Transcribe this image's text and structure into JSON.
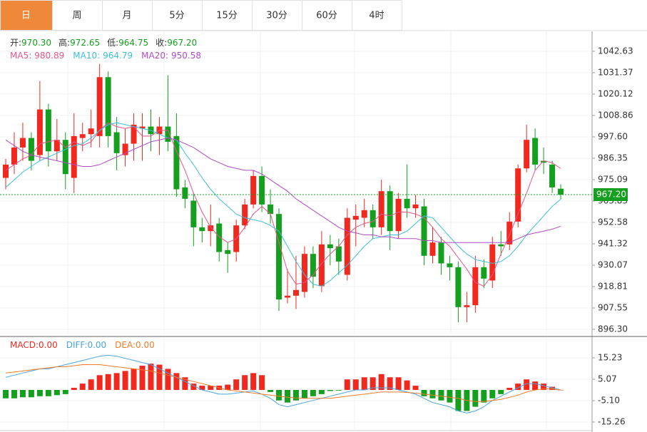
{
  "tabs": [
    "日",
    "周",
    "月",
    "5分",
    "15分",
    "30分",
    "60分",
    "4时"
  ],
  "chart_data": [
    {
      "type": "candlestick",
      "info": [
        {
          "label": "开:",
          "value": "970.30"
        },
        {
          "label": "高:",
          "value": "972.65"
        },
        {
          "label": "低:",
          "value": "964.75"
        },
        {
          "label": "收:",
          "value": "967.20"
        }
      ],
      "up_color": "#f0281e",
      "down_color": "#14a01e",
      "open": [
        976,
        983,
        992,
        997,
        988,
        1012,
        990,
        996,
        976,
        997,
        999,
        998,
        1029,
        1000,
        988,
        994,
        1002,
        1003,
        999,
        1003,
        998,
        971,
        964,
        950,
        948,
        952,
        938,
        937,
        951,
        962,
        977,
        962,
        957,
        913,
        914,
        916,
        936,
        919,
        941,
        940,
        925,
        954,
        955,
        959,
        950,
        969,
        948,
        965,
        960,
        961,
        935,
        942,
        931,
        929,
        908,
        909,
        929,
        922,
        941,
        941,
        953,
        981,
        997,
        985,
        983,
        970.3
      ],
      "high": [
        986,
        1000,
        1005,
        1000,
        1027,
        1015,
        1007,
        1000,
        1010,
        1005,
        1012,
        1036,
        1032,
        1008,
        1002,
        1010,
        1010,
        1012,
        1008,
        1030,
        1010,
        975,
        968,
        955,
        962,
        955,
        942,
        954,
        965,
        980,
        982,
        970,
        960,
        928,
        935,
        940,
        940,
        948,
        946,
        944,
        960,
        962,
        965,
        962,
        975,
        972,
        968,
        983,
        967,
        965,
        950,
        945,
        935,
        932,
        916,
        935,
        933,
        945,
        948,
        958,
        983,
        1004,
        1002,
        992,
        985,
        972.65
      ],
      "low": [
        970,
        978,
        985,
        980,
        985,
        982,
        985,
        970,
        968,
        990,
        992,
        992,
        992,
        980,
        982,
        985,
        985,
        990,
        988,
        990,
        966,
        960,
        940,
        942,
        940,
        932,
        926,
        932,
        949,
        960,
        958,
        952,
        906,
        910,
        907,
        913,
        918,
        916,
        930,
        925,
        922,
        940,
        950,
        944,
        946,
        938,
        944,
        955,
        955,
        930,
        931,
        925,
        922,
        900,
        900,
        905,
        918,
        918,
        935,
        938,
        950,
        979,
        980,
        978,
        968,
        964.75
      ],
      "close": [
        983,
        992,
        997,
        985,
        1012,
        990,
        996,
        978,
        998,
        999,
        1002,
        1029,
        998,
        989,
        994,
        1004,
        1003,
        999,
        1003,
        995,
        970,
        965,
        950,
        948,
        951,
        937,
        936,
        951,
        962,
        977,
        962,
        957,
        912,
        914,
        917,
        936,
        924,
        941,
        939,
        932,
        955,
        956,
        959,
        950,
        969,
        948,
        965,
        960,
        962,
        935,
        942,
        931,
        929,
        908,
        909,
        929,
        923,
        941,
        940,
        953,
        981,
        996,
        983,
        984,
        971,
        967.2
      ],
      "series": [
        {
          "name": "MA5:",
          "value_label": "980.89",
          "color": "#e8558a",
          "values": [
            980,
            983,
            986,
            988,
            994,
            995,
            996,
            992,
            995,
            993,
            995,
            1001,
            1005,
            1003,
            1002,
            1003,
            998,
            998,
            1001,
            1001,
            990,
            980,
            968,
            958,
            950,
            945,
            942,
            944,
            950,
            957,
            961,
            957,
            942,
            927,
            920,
            921,
            925,
            931,
            936,
            940,
            946,
            950,
            952,
            953,
            957,
            956,
            958,
            958,
            957,
            955,
            950,
            944,
            940,
            934,
            928,
            921,
            919,
            925,
            936,
            946,
            957,
            968,
            980,
            985,
            984,
            980.89
          ]
        },
        {
          "name": "MA10:",
          "value_label": "964.79",
          "color": "#3cbfd8",
          "values": [
            971,
            975,
            979,
            982,
            985,
            987,
            989,
            991,
            993,
            994,
            997,
            1001,
            1004,
            1005,
            1004,
            1003,
            1002,
            1001,
            999,
            997,
            996,
            989,
            983,
            976,
            970,
            965,
            961,
            957,
            955,
            954,
            953,
            951,
            948,
            940,
            932,
            925,
            920,
            919,
            922,
            926,
            930,
            935,
            940,
            944,
            945,
            946,
            946,
            948,
            952,
            956,
            955,
            950,
            945,
            940,
            936,
            933,
            932,
            931,
            932,
            935,
            940,
            946,
            951,
            956,
            961,
            964.79
          ]
        },
        {
          "name": "MA20:",
          "value_label": "950.58",
          "color": "#b04cc4",
          "values": [
            996,
            993,
            990,
            988,
            987,
            986,
            985,
            984,
            983,
            982,
            982,
            983,
            985,
            987,
            989,
            991,
            993,
            995,
            996,
            997,
            996,
            994,
            992,
            989,
            986,
            984,
            982,
            981,
            980,
            980,
            978,
            975,
            972,
            969,
            965,
            962,
            959,
            956,
            953,
            950,
            948,
            947,
            946,
            946,
            945,
            945,
            944,
            944,
            944,
            943,
            943,
            942,
            942,
            942,
            942,
            942,
            942,
            942,
            942,
            942,
            944,
            946,
            947,
            948,
            949,
            950.58
          ]
        }
      ],
      "last_label": "967.20",
      "ylim": [
        893.3,
        1053.1
      ],
      "yticks": [
        1042.63,
        1031.37,
        1020.12,
        1008.86,
        {
          "value": 997.6,
          "label": "997.60"
        },
        986.35,
        975.09,
        963.83,
        952.58,
        941.32,
        930.07,
        918.81,
        907.55,
        {
          "value": 896.3,
          "label": "896.30"
        }
      ],
      "grid": true
    },
    {
      "type": "macd",
      "histogram": {
        "name": "MACD:",
        "value_label": "0.00",
        "values": [
          -4,
          -4,
          -3.5,
          -3.5,
          -3,
          -3,
          -2.5,
          -2,
          1,
          3,
          5,
          7,
          7.5,
          8,
          9,
          10,
          11.5,
          12.5,
          12,
          10,
          8,
          6,
          3,
          2,
          2,
          2,
          2.5,
          5,
          7,
          8,
          7,
          -1,
          -5,
          -6,
          -5,
          -4,
          -3,
          -2,
          -0.5,
          -0.3,
          5,
          5,
          6,
          6,
          7.5,
          6,
          6,
          4.5,
          2,
          -3,
          -4,
          -5,
          -6,
          -10,
          -10,
          -8,
          -6,
          -4,
          -2,
          1,
          3,
          5,
          4,
          3,
          1.5,
          0
        ]
      },
      "series": [
        {
          "name": "DIFF:",
          "value_label": "0.00",
          "color": "#4aa3e0",
          "values": [
            6,
            7,
            8,
            9,
            10,
            10,
            11,
            12,
            13,
            14,
            15,
            16,
            16.5,
            16,
            15,
            14,
            13,
            12,
            10,
            8,
            6,
            4,
            2,
            0,
            -1,
            -2,
            -2,
            -1.5,
            -1,
            -0.5,
            -2,
            -4,
            -7,
            -8,
            -7,
            -6,
            -5,
            -4,
            -3,
            -2,
            -1,
            0,
            0,
            1,
            1,
            1,
            0,
            -1,
            -2,
            -4,
            -6,
            -7,
            -8,
            -10,
            -11,
            -10,
            -8,
            -5,
            -3,
            -1,
            1,
            3,
            3,
            2,
            1,
            0
          ]
        },
        {
          "name": "DEA:",
          "value_label": "0.00",
          "color": "#f07b2a",
          "values": [
            8,
            8.5,
            9,
            9.5,
            10,
            10.5,
            11,
            11,
            11.5,
            12,
            12,
            12,
            11.5,
            11,
            10.5,
            10,
            9.5,
            9,
            8,
            7,
            6,
            5,
            4,
            3,
            2,
            1,
            0,
            -0.5,
            -1,
            -1.5,
            -2,
            -2.5,
            -3,
            -3.5,
            -3.8,
            -4,
            -4,
            -4,
            -4,
            -3.5,
            -3,
            -2.5,
            -2,
            -1.5,
            -1,
            -1,
            -1,
            -1.2,
            -1.5,
            -2,
            -2.5,
            -3,
            -3.5,
            -4,
            -5,
            -5.5,
            -5.5,
            -5,
            -4.5,
            -3.5,
            -2.5,
            -1,
            0,
            0.5,
            0.5,
            0
          ]
        }
      ],
      "up_color": "#f0281e",
      "down_color": "#14a01e",
      "ylim": [
        -19.32,
        23.36
      ],
      "yticks": [
        15.23,
        5.07,
        {
          "value": -5.1,
          "label": "-5.10"
        },
        -15.26
      ],
      "grid": true
    }
  ]
}
